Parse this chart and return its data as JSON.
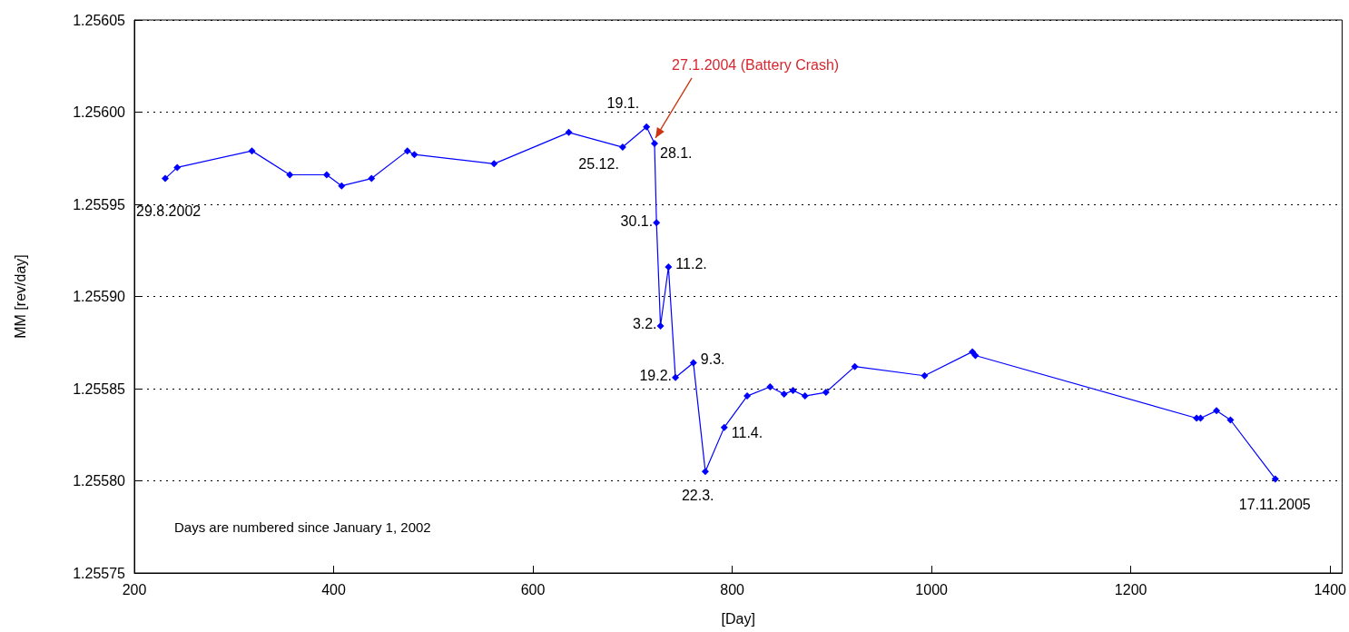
{
  "chart_data": {
    "type": "line",
    "xlabel": "[Day]",
    "ylabel": "MM [rev/day]",
    "x": [
      231,
      243,
      318,
      356,
      393,
      408,
      438,
      474,
      481,
      561,
      636,
      690,
      714,
      722,
      724,
      728,
      736,
      743,
      761,
      773,
      792,
      815,
      838,
      852,
      861,
      873,
      894,
      923,
      993,
      1041,
      1044,
      1266,
      1270,
      1286,
      1300,
      1345
    ],
    "series": [
      {
        "color": "#0000ff",
        "values": [
          1.255964,
          1.25597,
          1.255979,
          1.255966,
          1.255966,
          1.25596,
          1.255964,
          1.255979,
          1.255977,
          1.255972,
          1.255989,
          1.255981,
          1.255992,
          1.255983,
          1.25594,
          1.255884,
          1.255916,
          1.255856,
          1.255864,
          1.255805,
          1.255829,
          1.255846,
          1.255851,
          1.255847,
          1.255849,
          1.255846,
          1.255848,
          1.255862,
          1.255857,
          1.25587,
          1.255868,
          1.255834,
          1.255834,
          1.255838,
          1.255833,
          1.255801
        ]
      }
    ],
    "xlim": [
      200,
      1412
    ],
    "xticks": [
      200,
      400,
      600,
      800,
      1000,
      1200,
      1400
    ],
    "ylim": [
      1.25575,
      1.25605
    ],
    "yticks": [
      1.25575,
      {
        "value": 1.2558,
        "label": "1.25580"
      },
      1.25585,
      {
        "value": 1.2559,
        "label": "1.25590"
      },
      1.25595,
      {
        "value": 1.256,
        "label": "1.25600"
      },
      1.25605
    ],
    "grid": "y",
    "marker": "diamond",
    "line_style": "solid",
    "annotations": [
      {
        "text": "29.8.2002",
        "x": 231,
        "y": 1.255964
      },
      {
        "text": "25.12.",
        "x": 690,
        "y": 1.255981
      },
      {
        "text": "19.1.",
        "x": 714,
        "y": 1.255992
      },
      {
        "text": "28.1.",
        "x": 722,
        "y": 1.255983
      },
      {
        "text": "30.1.",
        "x": 724,
        "y": 1.25594
      },
      {
        "text": "11.2.",
        "x": 736,
        "y": 1.255916
      },
      {
        "text": "3.2.",
        "x": 728,
        "y": 1.255884
      },
      {
        "text": "19.2.",
        "x": 743,
        "y": 1.255856
      },
      {
        "text": "9.3.",
        "x": 761,
        "y": 1.255864
      },
      {
        "text": "22.3.",
        "x": 773,
        "y": 1.255805
      },
      {
        "text": "11.4.",
        "x": 792,
        "y": 1.255829
      },
      {
        "text": "17.11.2005",
        "x": 1345,
        "y": 1.255801
      },
      {
        "text": "27.1.2004 (Battery Crash)",
        "x": 723,
        "y": 1.255986
      },
      "Days are numbered since January 1, 2002"
    ]
  }
}
